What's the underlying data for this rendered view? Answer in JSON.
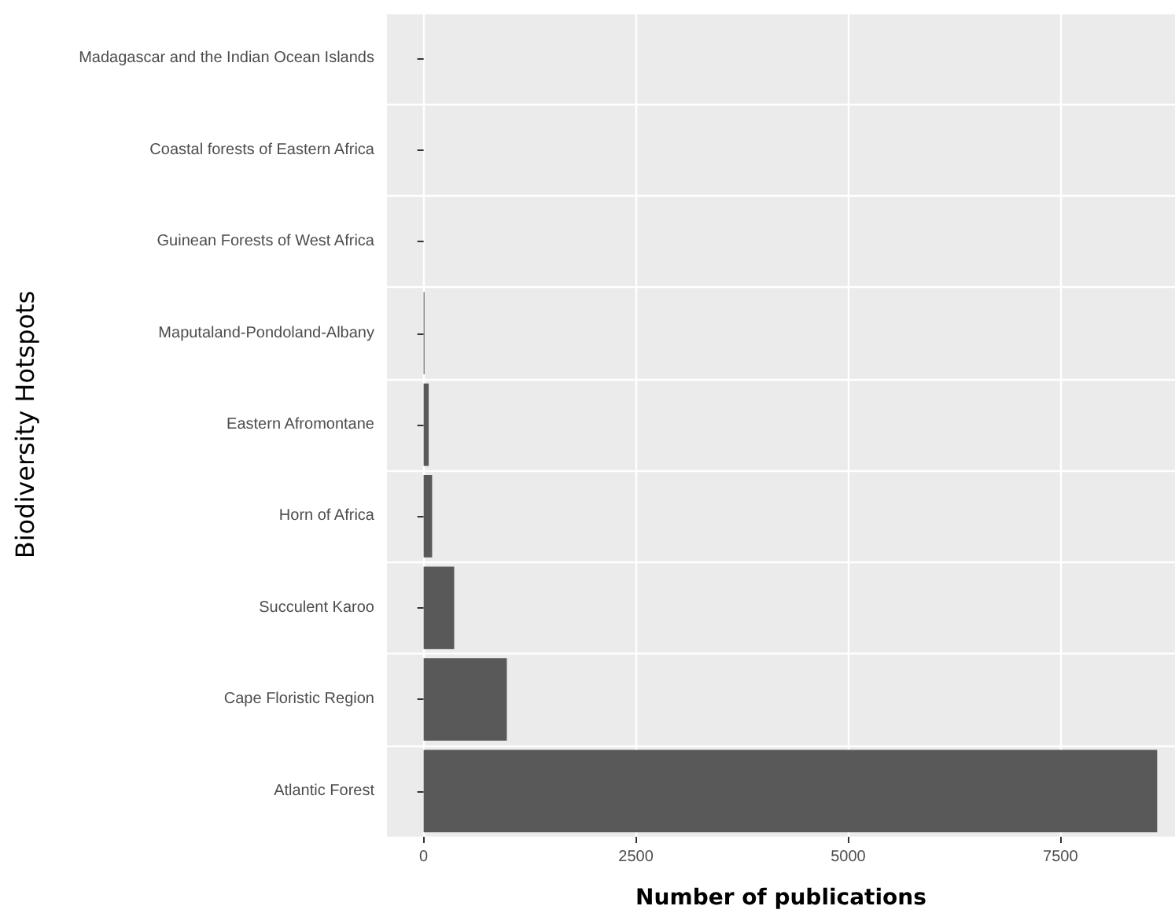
{
  "chart_data": {
    "type": "bar",
    "orientation": "horizontal",
    "xlabel": "Number of publications",
    "ylabel": "Biodiversity Hotspots",
    "categories": [
      "Madagascar and the Indian Ocean Islands",
      "Coastal forests of Eastern Africa",
      "Guinean Forests of West Africa",
      "Maputaland-Pondoland-Albany",
      "Eastern Afromontane",
      "Horn of Africa",
      "Succulent Karoo",
      "Cape Floristic Region",
      "Atlantic Forest"
    ],
    "values": [
      0,
      0,
      0,
      10,
      60,
      100,
      360,
      980,
      8640
    ],
    "color": "#595959",
    "xlim": [
      -432,
      8850
    ],
    "xticks": [
      0,
      2500,
      5000,
      7500
    ],
    "grid": true
  }
}
